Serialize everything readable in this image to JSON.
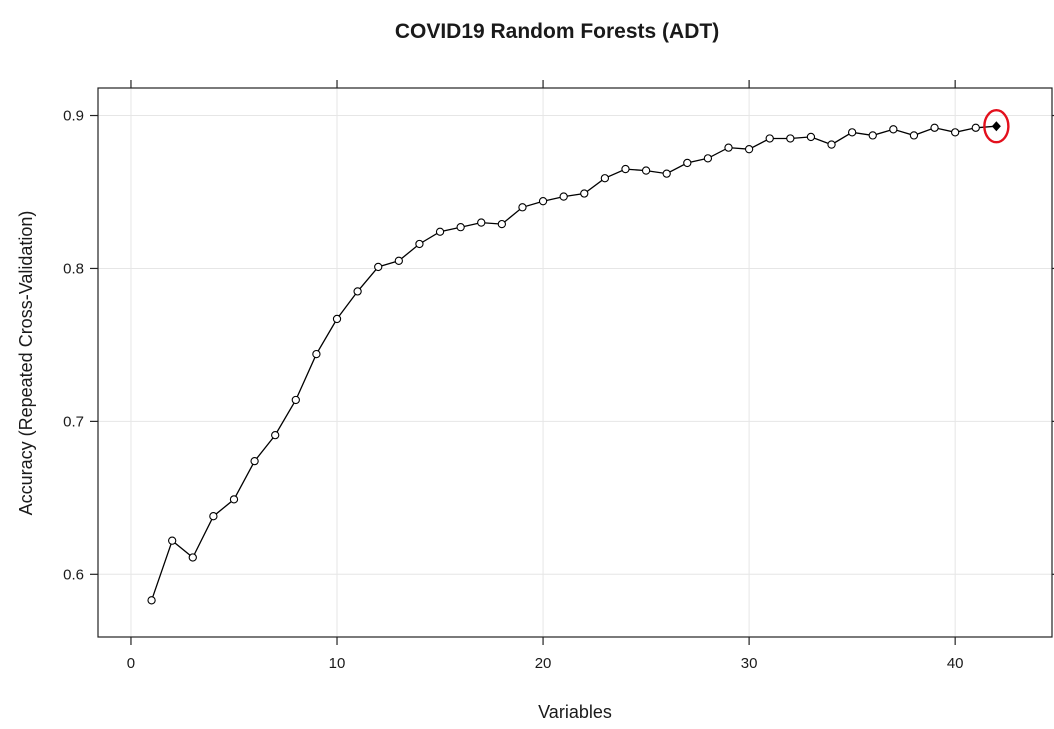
{
  "chart_data": {
    "type": "line",
    "title": "COVID19 Random Forests (ADT)",
    "xlabel": "Variables",
    "ylabel": "Accuracy (Repeated Cross-Validation)",
    "xlim": [
      -1.6,
      44.7
    ],
    "ylim": [
      0.559,
      0.918
    ],
    "x_ticks": [
      0,
      10,
      20,
      30,
      40
    ],
    "y_ticks": [
      0.6,
      0.7,
      0.8,
      0.9
    ],
    "x_tick_labels": [
      "0",
      "10",
      "20",
      "30",
      "40"
    ],
    "y_tick_labels": [
      "0.6",
      "0.7",
      "0.8",
      "0.9"
    ],
    "grid": true,
    "legend": "none",
    "colors": {
      "line": "#000000",
      "marker": "#000000",
      "highlight": "#e3101d",
      "grid": "#e6e6e6"
    },
    "series": [
      {
        "x": [
          1,
          2,
          3,
          4,
          5,
          6,
          7,
          8,
          9,
          10,
          11,
          12,
          13,
          14,
          15,
          16,
          17,
          18,
          19,
          20,
          21,
          22,
          23,
          24,
          25,
          26,
          27,
          28,
          29,
          30,
          31,
          32,
          33,
          34,
          35,
          36,
          37,
          38,
          39,
          40,
          41,
          42
        ],
        "y": [
          0.583,
          0.622,
          0.611,
          0.638,
          0.649,
          0.674,
          0.691,
          0.714,
          0.744,
          0.767,
          0.785,
          0.801,
          0.805,
          0.816,
          0.824,
          0.827,
          0.83,
          0.829,
          0.84,
          0.844,
          0.847,
          0.849,
          0.859,
          0.865,
          0.864,
          0.862,
          0.869,
          0.872,
          0.879,
          0.878,
          0.885,
          0.885,
          0.886,
          0.881,
          0.889,
          0.887,
          0.891,
          0.887,
          0.892,
          0.889,
          0.892,
          0.893
        ]
      }
    ],
    "highlight_point": {
      "x": 42,
      "y": 0.893
    }
  }
}
